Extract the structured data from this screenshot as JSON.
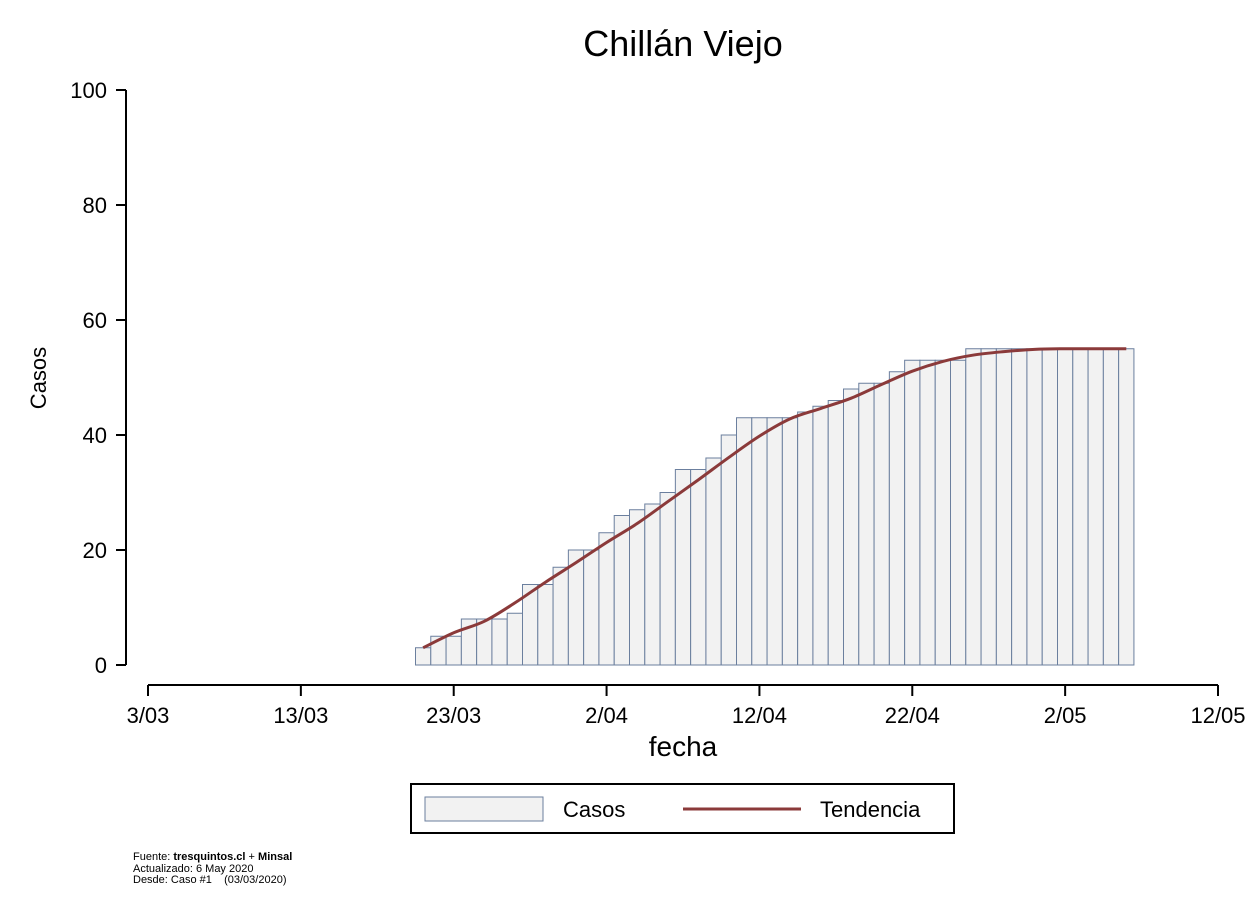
{
  "chart_data": {
    "type": "bar",
    "title": "Chillán Viejo",
    "xlabel": "fecha",
    "ylabel": "Casos",
    "ylim": [
      0,
      100
    ],
    "yticks": [
      0,
      20,
      40,
      60,
      80,
      100
    ],
    "xlim_days_from_first_tick": [
      0,
      70
    ],
    "xticks": [
      "3/03",
      "13/03",
      "23/03",
      "2/04",
      "12/04",
      "22/04",
      "2/05",
      "12/05"
    ],
    "grid": false,
    "legend_position": "bottom-center",
    "series": [
      {
        "name": "Casos",
        "type": "bar",
        "color": "#f2f2f2",
        "edge_color": "#6b7f9e",
        "dates": [
          "21/03",
          "22/03",
          "23/03",
          "24/03",
          "25/03",
          "26/03",
          "27/03",
          "28/03",
          "29/03",
          "30/03",
          "31/03",
          "1/04",
          "2/04",
          "3/04",
          "4/04",
          "5/04",
          "6/04",
          "7/04",
          "8/04",
          "9/04",
          "10/04",
          "11/04",
          "12/04",
          "13/04",
          "14/04",
          "15/04",
          "16/04",
          "17/04",
          "18/04",
          "19/04",
          "20/04",
          "21/04",
          "22/04",
          "23/04",
          "24/04",
          "25/04",
          "26/04",
          "27/04",
          "28/04",
          "29/04",
          "30/04",
          "1/05",
          "2/05",
          "3/05",
          "4/05",
          "5/05",
          "6/05"
        ],
        "values": [
          3,
          5,
          5,
          8,
          8,
          8,
          9,
          14,
          14,
          17,
          20,
          20,
          23,
          26,
          27,
          28,
          30,
          34,
          34,
          36,
          40,
          43,
          43,
          43,
          43,
          44,
          45,
          46,
          48,
          49,
          49,
          51,
          53,
          53,
          53,
          53,
          55,
          55,
          55,
          55,
          55,
          55,
          55,
          55,
          55,
          55,
          55
        ]
      },
      {
        "name": "Tendencia",
        "type": "line",
        "color": "#8b3a3a",
        "dates": [
          "21/03",
          "23/03",
          "25/03",
          "27/03",
          "29/03",
          "31/03",
          "2/04",
          "4/04",
          "6/04",
          "8/04",
          "10/04",
          "12/04",
          "14/04",
          "16/04",
          "18/04",
          "20/04",
          "22/04",
          "24/04",
          "26/04",
          "28/04",
          "30/04",
          "2/05",
          "4/05",
          "6/05"
        ],
        "values": [
          3,
          5.6,
          7.6,
          10.8,
          14.4,
          17.8,
          21.3,
          24.6,
          28.4,
          32.2,
          36.1,
          39.8,
          42.8,
          44.6,
          46.4,
          48.8,
          51.1,
          52.8,
          53.9,
          54.5,
          54.9,
          55,
          55,
          55
        ]
      }
    ]
  },
  "footer": {
    "source_prefix": "Fuente: ",
    "source_bold_1": "tresquintos.cl",
    "source_mid": " + ",
    "source_bold_2": "Minsal",
    "updated": "Actualizado: 6 May 2020",
    "since": "Desde: Caso #1    (03/03/2020)"
  }
}
